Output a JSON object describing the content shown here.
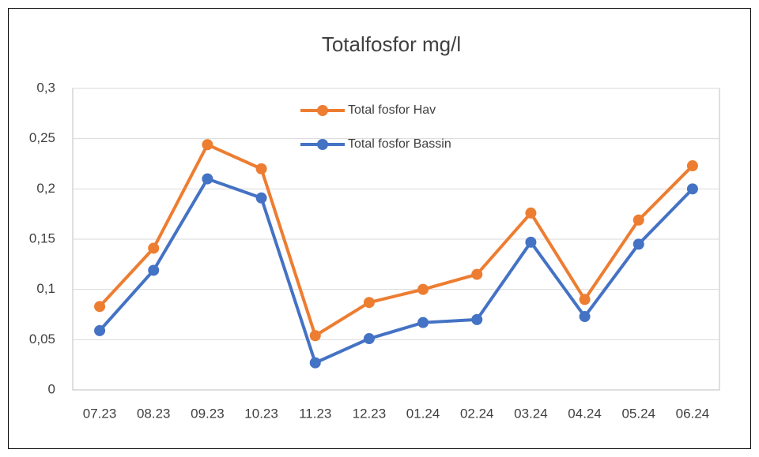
{
  "chart_data": {
    "type": "line",
    "title": "Totalfosfor mg/l",
    "categories": [
      "07.23",
      "08.23",
      "09.23",
      "10.23",
      "11.23",
      "12.23",
      "01.24",
      "02.24",
      "03.24",
      "04.24",
      "05.24",
      "06.24"
    ],
    "series": [
      {
        "name": "Total fosfor Hav",
        "color": "#ed7d31",
        "values": [
          0.083,
          0.141,
          0.244,
          0.22,
          0.054,
          0.087,
          0.1,
          0.115,
          0.176,
          0.09,
          0.169,
          0.223
        ]
      },
      {
        "name": "Total fosfor Bassin",
        "color": "#4472c4",
        "values": [
          0.059,
          0.119,
          0.21,
          0.191,
          0.027,
          0.051,
          0.067,
          0.07,
          0.147,
          0.073,
          0.145,
          0.2
        ]
      }
    ],
    "ylim": [
      0,
      0.3
    ],
    "yticks": [
      0,
      {
        "value": 0.05,
        "label": "0,05"
      },
      {
        "value": 0.1,
        "label": "0,1"
      },
      {
        "value": 0.15,
        "label": "0,15"
      },
      {
        "value": 0.2,
        "label": "0,2"
      },
      {
        "value": 0.25,
        "label": "0,25"
      },
      {
        "value": 0.3,
        "label": "0,3"
      }
    ],
    "grid": true
  }
}
